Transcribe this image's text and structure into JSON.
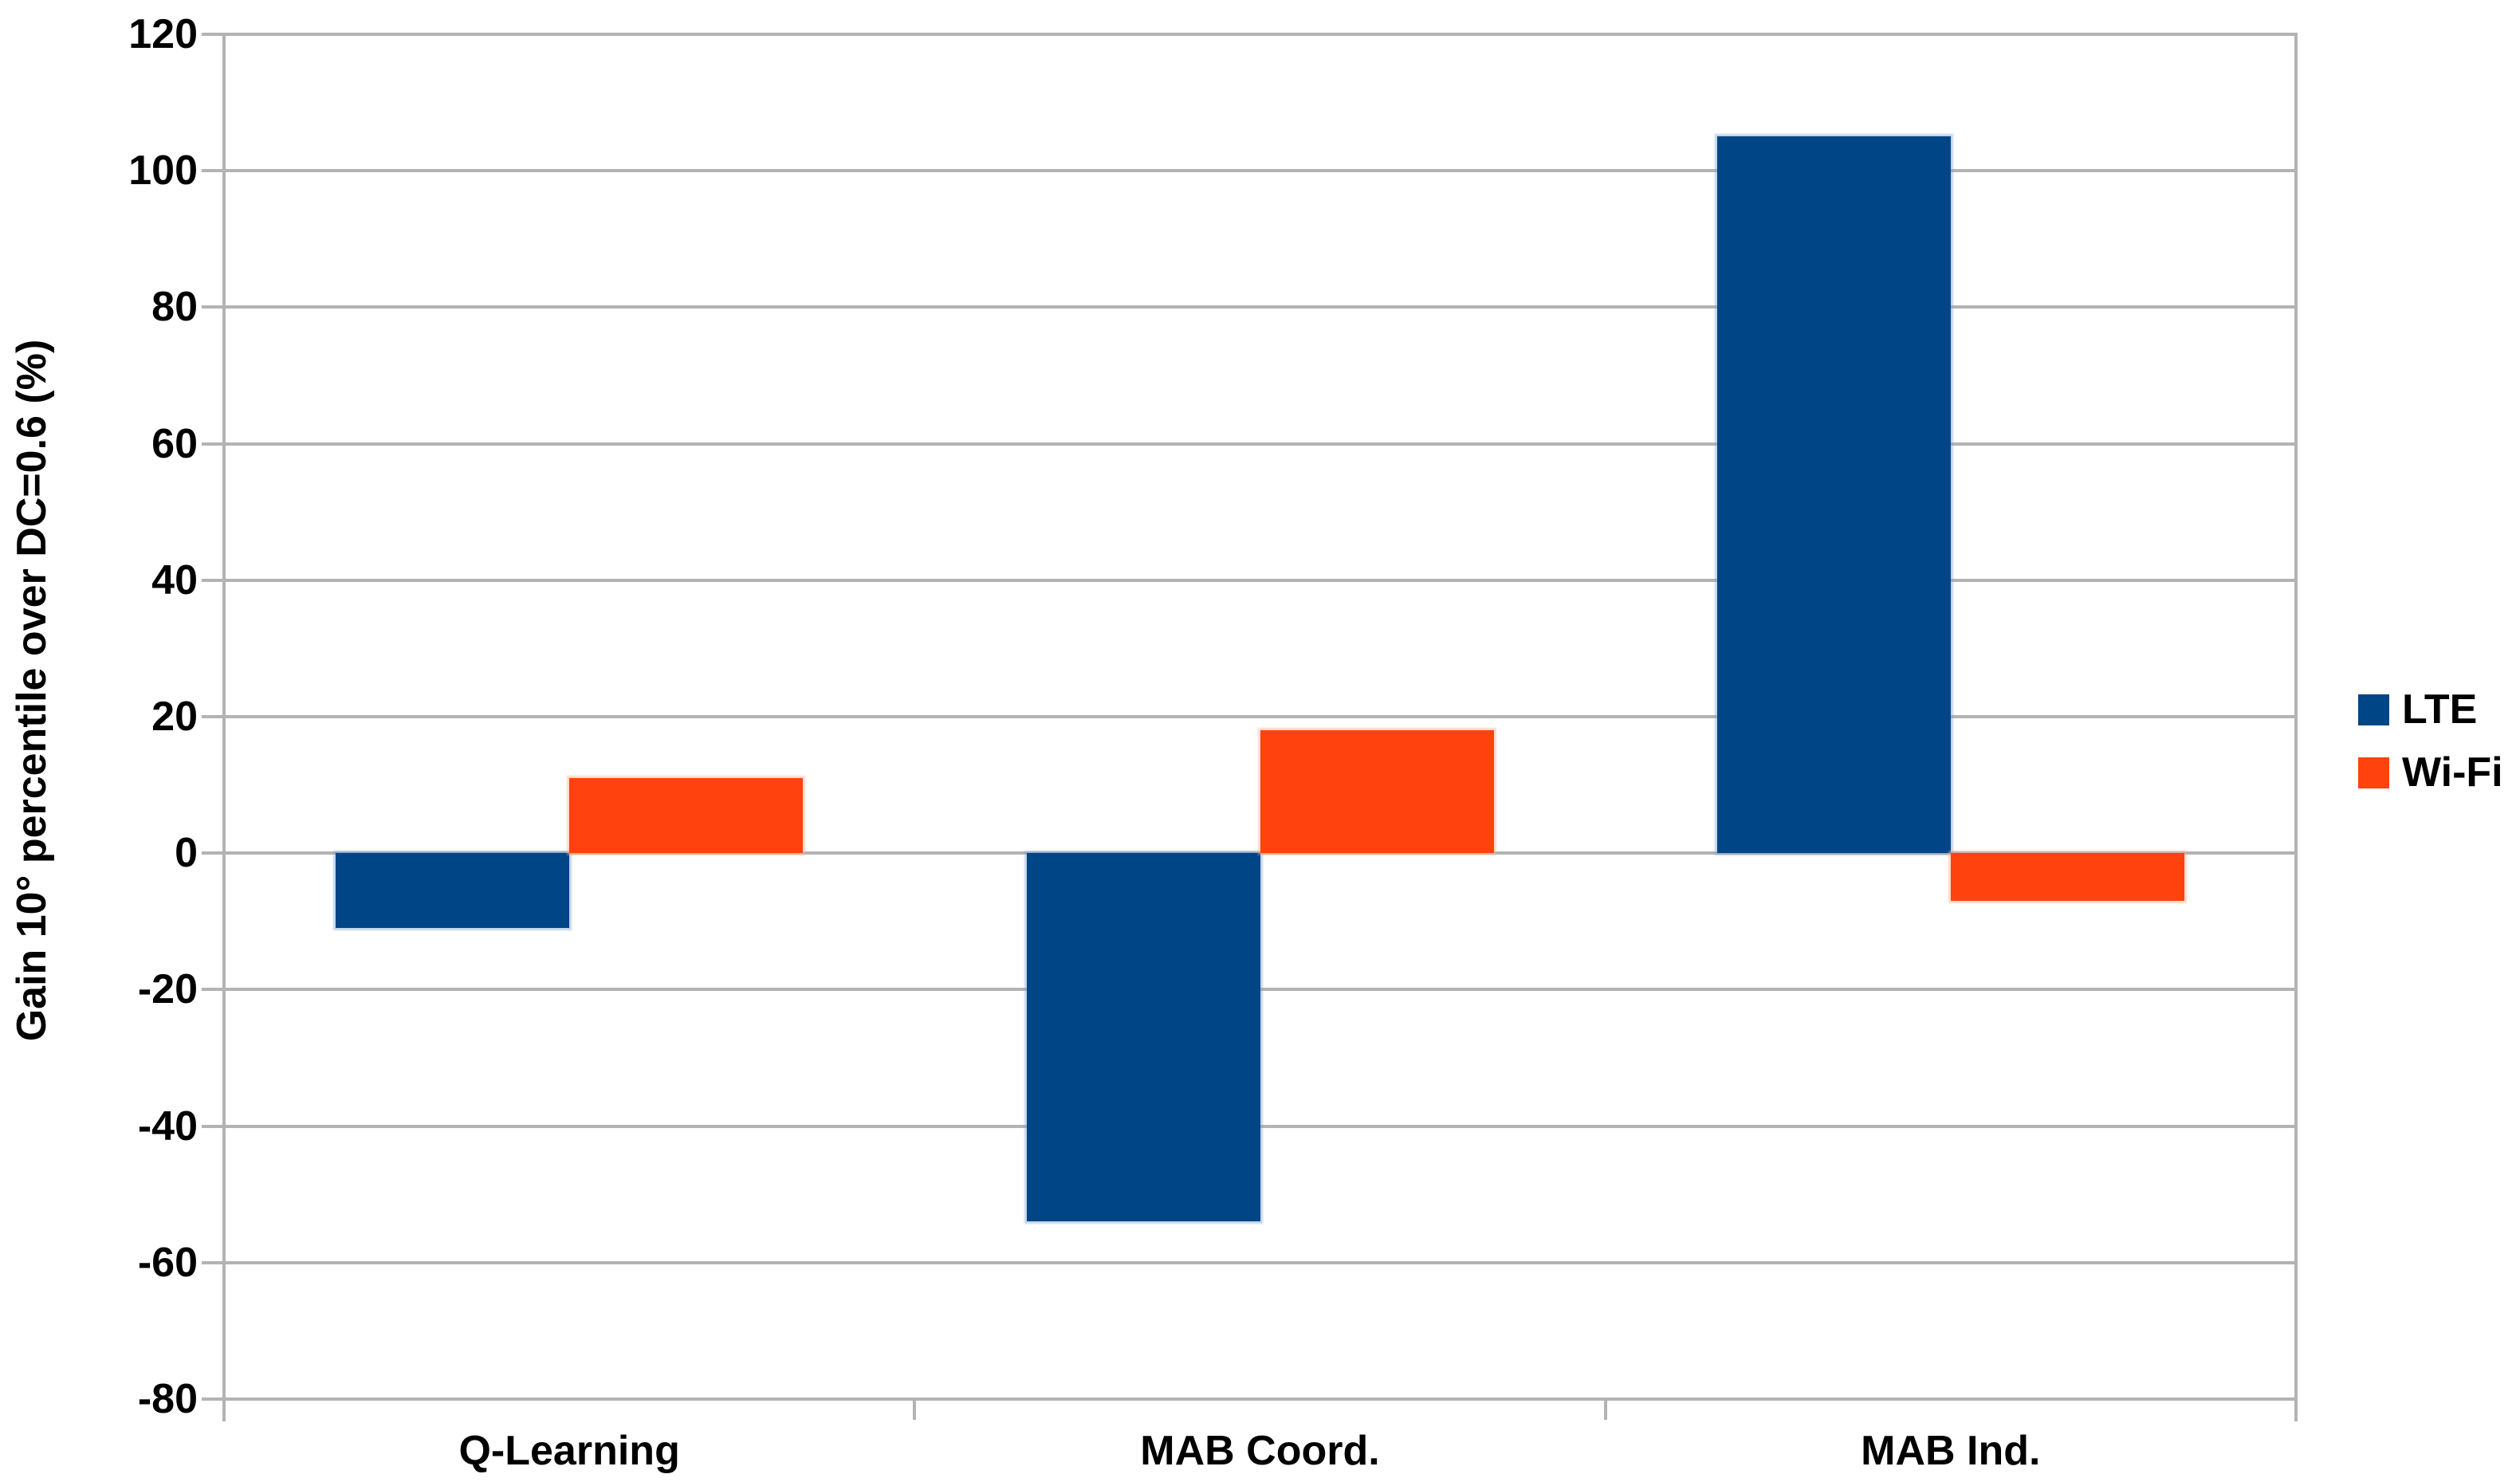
{
  "chart_data": {
    "type": "bar",
    "title": "",
    "categories": [
      "Q-Learning",
      "MAB Coord.",
      "MAB Ind."
    ],
    "series": [
      {
        "name": "LTE",
        "color": "#004586",
        "values": [
          -11,
          -54,
          105
        ]
      },
      {
        "name": "Wi-Fi",
        "color": "#FF420E",
        "values": [
          11,
          18,
          -7
        ]
      }
    ],
    "xlabel": "",
    "ylabel": "Gain 10° percentile over DC=0.6 (%)",
    "ylim": [
      -80,
      120
    ],
    "ytick_step": 20,
    "yticks": [
      120,
      100,
      80,
      60,
      40,
      20,
      0,
      -20,
      -40,
      -60,
      -80
    ],
    "grid": true,
    "gridline_color": "#b3b3b3",
    "text_color": "#000000",
    "legend_position": "right",
    "plot_background": "#ffffff"
  }
}
